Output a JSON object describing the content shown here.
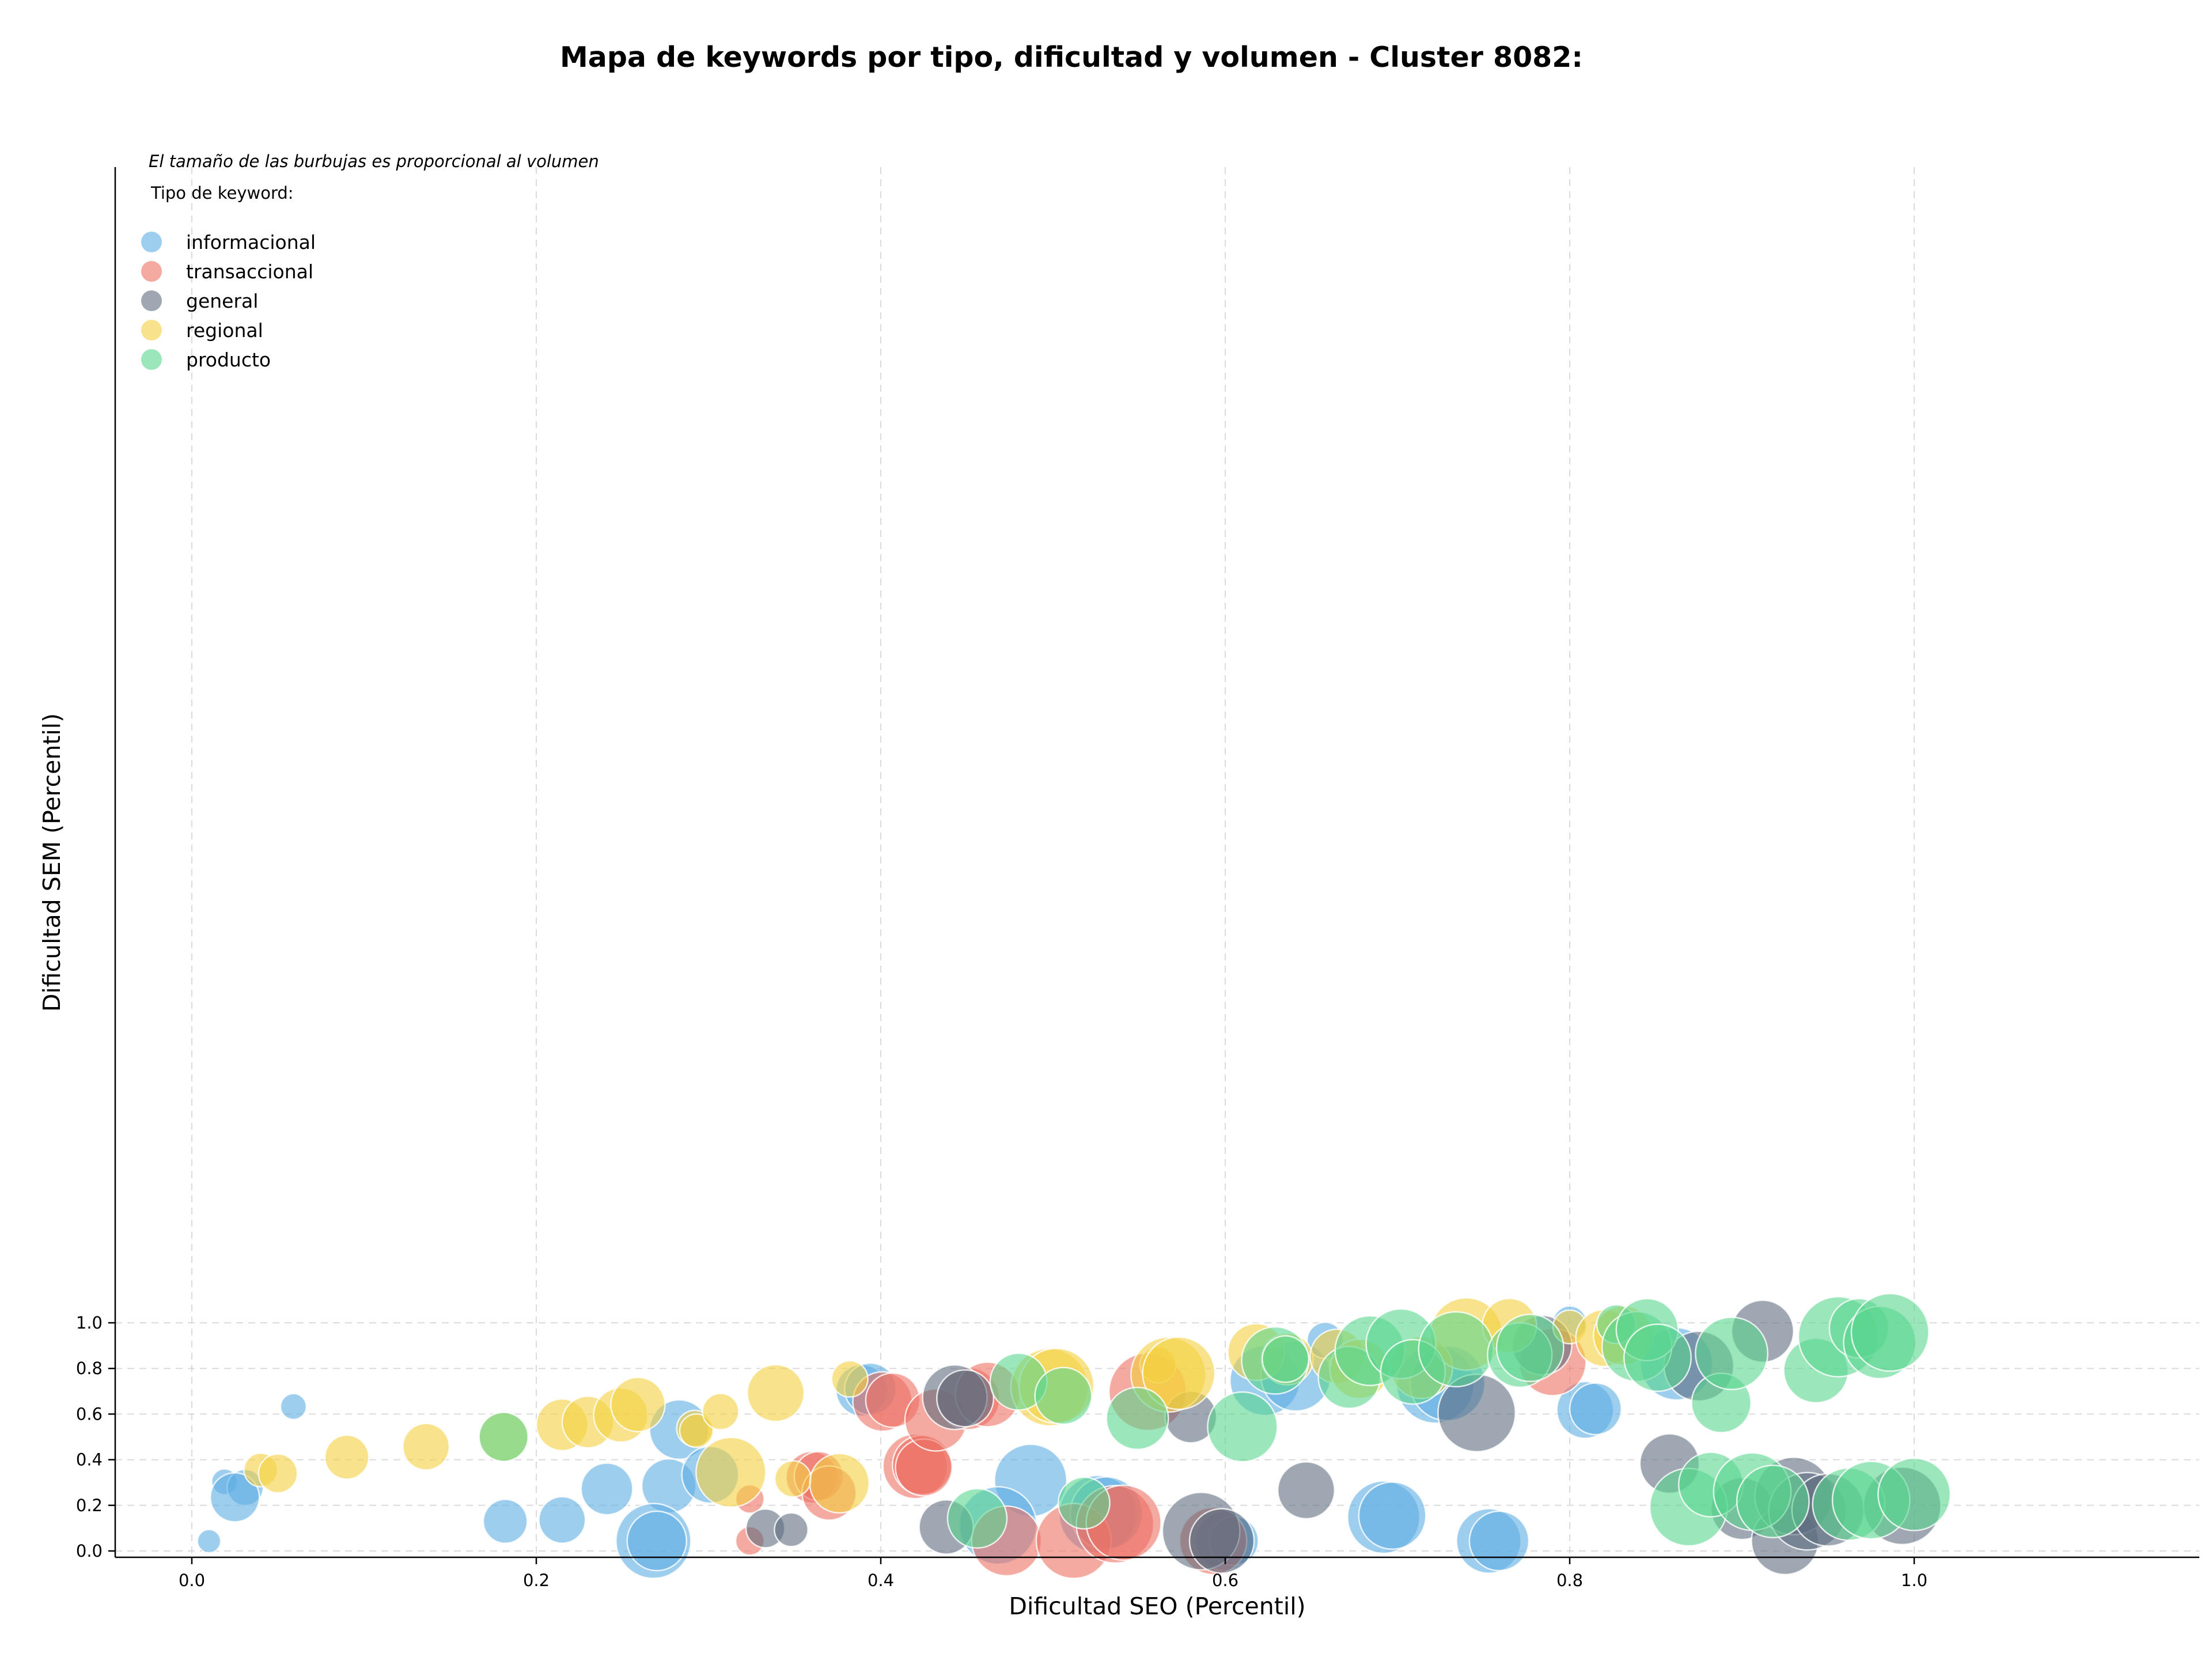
{
  "chart_data": {
    "type": "scatter",
    "title": "Mapa de keywords por tipo, dificultad y volumen - Cluster 8082:",
    "xlabel": "Dificultad SEO (Percentil)",
    "ylabel": "Dificultad SEM (Percentil)",
    "note": "El tamaño de las burbujas es proporcional al volumen",
    "legend_title": "Tipo de keyword:",
    "legend_position": "top-left",
    "grid": true,
    "xlim": [
      -0.04,
      1.05
    ],
    "ylim": [
      -0.005,
      1.05
    ],
    "xticks": [
      "0.0",
      "0.2",
      "0.4",
      "0.6",
      "0.8",
      "1.0"
    ],
    "yticks": [
      "0.0",
      "0.2",
      "0.4",
      "0.6",
      "0.8",
      "1.0"
    ],
    "series": [
      {
        "name": "informacional",
        "color": "#5dade2",
        "points": [
          {
            "x": 0.01,
            "y": 0.043,
            "size": 18
          },
          {
            "x": 0.059,
            "y": 0.633,
            "size": 20
          },
          {
            "x": 0.019,
            "y": 0.303,
            "size": 20
          },
          {
            "x": 0.031,
            "y": 0.278,
            "size": 28
          },
          {
            "x": 0.025,
            "y": 0.235,
            "size": 38
          },
          {
            "x": 0.182,
            "y": 0.13,
            "size": 34
          },
          {
            "x": 0.215,
            "y": 0.136,
            "size": 36
          },
          {
            "x": 0.241,
            "y": 0.272,
            "size": 40
          },
          {
            "x": 0.277,
            "y": 0.285,
            "size": 42
          },
          {
            "x": 0.283,
            "y": 0.532,
            "size": 46
          },
          {
            "x": 0.301,
            "y": 0.334,
            "size": 44
          },
          {
            "x": 0.268,
            "y": 0.044,
            "size": 58
          },
          {
            "x": 0.27,
            "y": 0.044,
            "size": 46
          },
          {
            "x": 0.389,
            "y": 0.704,
            "size": 40
          },
          {
            "x": 0.394,
            "y": 0.71,
            "size": 40
          },
          {
            "x": 0.487,
            "y": 0.309,
            "size": 56
          },
          {
            "x": 0.468,
            "y": 0.112,
            "size": 60
          },
          {
            "x": 0.526,
            "y": 0.161,
            "size": 60
          },
          {
            "x": 0.531,
            "y": 0.166,
            "size": 56
          },
          {
            "x": 0.6,
            "y": 0.044,
            "size": 46
          },
          {
            "x": 0.605,
            "y": 0.044,
            "size": 38
          },
          {
            "x": 0.623,
            "y": 0.747,
            "size": 54
          },
          {
            "x": 0.641,
            "y": 0.766,
            "size": 54
          },
          {
            "x": 0.658,
            "y": 0.923,
            "size": 28
          },
          {
            "x": 0.692,
            "y": 0.148,
            "size": 56
          },
          {
            "x": 0.697,
            "y": 0.155,
            "size": 52
          },
          {
            "x": 0.722,
            "y": 0.73,
            "size": 60
          },
          {
            "x": 0.729,
            "y": 0.735,
            "size": 58
          },
          {
            "x": 0.753,
            "y": 0.044,
            "size": 50
          },
          {
            "x": 0.759,
            "y": 0.044,
            "size": 46
          },
          {
            "x": 0.8,
            "y": 1.0,
            "size": 26
          },
          {
            "x": 0.809,
            "y": 0.618,
            "size": 44
          },
          {
            "x": 0.815,
            "y": 0.623,
            "size": 40
          },
          {
            "x": 0.862,
            "y": 0.82,
            "size": 56
          }
        ]
      },
      {
        "name": "transaccional",
        "color": "#ec7063",
        "points": [
          {
            "x": 0.324,
            "y": 0.228,
            "size": 22
          },
          {
            "x": 0.324,
            "y": 0.044,
            "size": 22
          },
          {
            "x": 0.36,
            "y": 0.323,
            "size": 40
          },
          {
            "x": 0.364,
            "y": 0.328,
            "size": 38
          },
          {
            "x": 0.37,
            "y": 0.254,
            "size": 42
          },
          {
            "x": 0.401,
            "y": 0.655,
            "size": 46
          },
          {
            "x": 0.407,
            "y": 0.661,
            "size": 42
          },
          {
            "x": 0.42,
            "y": 0.371,
            "size": 50
          },
          {
            "x": 0.424,
            "y": 0.377,
            "size": 46
          },
          {
            "x": 0.425,
            "y": 0.366,
            "size": 44
          },
          {
            "x": 0.432,
            "y": 0.574,
            "size": 48
          },
          {
            "x": 0.451,
            "y": 0.668,
            "size": 48
          },
          {
            "x": 0.462,
            "y": 0.686,
            "size": 50
          },
          {
            "x": 0.473,
            "y": 0.044,
            "size": 54
          },
          {
            "x": 0.512,
            "y": 0.044,
            "size": 58
          },
          {
            "x": 0.536,
            "y": 0.117,
            "size": 60
          },
          {
            "x": 0.541,
            "y": 0.124,
            "size": 58
          },
          {
            "x": 0.555,
            "y": 0.698,
            "size": 60
          },
          {
            "x": 0.593,
            "y": 0.044,
            "size": 52
          },
          {
            "x": 0.79,
            "y": 0.828,
            "size": 52
          }
        ]
      },
      {
        "name": "general",
        "color": "#5d6d7e",
        "points": [
          {
            "x": 0.333,
            "y": 0.099,
            "size": 30
          },
          {
            "x": 0.348,
            "y": 0.093,
            "size": 26
          },
          {
            "x": 0.438,
            "y": 0.105,
            "size": 42
          },
          {
            "x": 0.443,
            "y": 0.674,
            "size": 50
          },
          {
            "x": 0.449,
            "y": 0.669,
            "size": 44
          },
          {
            "x": 0.58,
            "y": 0.587,
            "size": 40
          },
          {
            "x": 0.586,
            "y": 0.087,
            "size": 60
          },
          {
            "x": 0.598,
            "y": 0.044,
            "size": 50
          },
          {
            "x": 0.647,
            "y": 0.266,
            "size": 44
          },
          {
            "x": 0.746,
            "y": 0.605,
            "size": 60
          },
          {
            "x": 0.784,
            "y": 0.902,
            "size": 46
          },
          {
            "x": 0.858,
            "y": 0.383,
            "size": 46
          },
          {
            "x": 0.875,
            "y": 0.81,
            "size": 54
          },
          {
            "x": 0.9,
            "y": 0.186,
            "size": 48
          },
          {
            "x": 0.912,
            "y": 0.963,
            "size": 48
          },
          {
            "x": 0.925,
            "y": 0.044,
            "size": 52
          },
          {
            "x": 0.93,
            "y": 0.241,
            "size": 60
          },
          {
            "x": 0.938,
            "y": 0.174,
            "size": 60
          },
          {
            "x": 0.95,
            "y": 0.18,
            "size": 56
          },
          {
            "x": 0.993,
            "y": 0.198,
            "size": 60
          }
        ]
      },
      {
        "name": "regional",
        "color": "#f4d03f",
        "points": [
          {
            "x": 0.04,
            "y": 0.355,
            "size": 26
          },
          {
            "x": 0.05,
            "y": 0.34,
            "size": 30
          },
          {
            "x": 0.09,
            "y": 0.411,
            "size": 34
          },
          {
            "x": 0.136,
            "y": 0.457,
            "size": 36
          },
          {
            "x": 0.181,
            "y": 0.5,
            "size": 38
          },
          {
            "x": 0.215,
            "y": 0.553,
            "size": 40
          },
          {
            "x": 0.23,
            "y": 0.565,
            "size": 40
          },
          {
            "x": 0.249,
            "y": 0.596,
            "size": 42
          },
          {
            "x": 0.259,
            "y": 0.642,
            "size": 42
          },
          {
            "x": 0.292,
            "y": 0.537,
            "size": 28
          },
          {
            "x": 0.293,
            "y": 0.527,
            "size": 26
          },
          {
            "x": 0.307,
            "y": 0.611,
            "size": 28
          },
          {
            "x": 0.313,
            "y": 0.345,
            "size": 54
          },
          {
            "x": 0.339,
            "y": 0.692,
            "size": 44
          },
          {
            "x": 0.349,
            "y": 0.316,
            "size": 28
          },
          {
            "x": 0.376,
            "y": 0.297,
            "size": 46
          },
          {
            "x": 0.382,
            "y": 0.754,
            "size": 28
          },
          {
            "x": 0.498,
            "y": 0.718,
            "size": 60
          },
          {
            "x": 0.502,
            "y": 0.724,
            "size": 58
          },
          {
            "x": 0.561,
            "y": 0.816,
            "size": 28
          },
          {
            "x": 0.567,
            "y": 0.773,
            "size": 58
          },
          {
            "x": 0.573,
            "y": 0.779,
            "size": 56
          },
          {
            "x": 0.618,
            "y": 0.872,
            "size": 44
          },
          {
            "x": 0.636,
            "y": 0.841,
            "size": 40
          },
          {
            "x": 0.665,
            "y": 0.853,
            "size": 42
          },
          {
            "x": 0.678,
            "y": 0.798,
            "size": 46
          },
          {
            "x": 0.714,
            "y": 0.804,
            "size": 48
          },
          {
            "x": 0.74,
            "y": 0.951,
            "size": 56
          },
          {
            "x": 0.765,
            "y": 0.988,
            "size": 42
          },
          {
            "x": 0.8,
            "y": 0.982,
            "size": 26
          },
          {
            "x": 0.82,
            "y": 0.933,
            "size": 44
          },
          {
            "x": 0.831,
            "y": 0.945,
            "size": 46
          }
        ]
      },
      {
        "name": "producto",
        "color": "#58d68d",
        "points": [
          {
            "x": 0.181,
            "y": 0.5,
            "size": 38
          },
          {
            "x": 0.456,
            "y": 0.143,
            "size": 46
          },
          {
            "x": 0.48,
            "y": 0.742,
            "size": 44
          },
          {
            "x": 0.506,
            "y": 0.68,
            "size": 44
          },
          {
            "x": 0.518,
            "y": 0.21,
            "size": 40
          },
          {
            "x": 0.549,
            "y": 0.581,
            "size": 48
          },
          {
            "x": 0.61,
            "y": 0.544,
            "size": 54
          },
          {
            "x": 0.629,
            "y": 0.835,
            "size": 52
          },
          {
            "x": 0.635,
            "y": 0.841,
            "size": 36
          },
          {
            "x": 0.672,
            "y": 0.761,
            "size": 48
          },
          {
            "x": 0.684,
            "y": 0.878,
            "size": 54
          },
          {
            "x": 0.702,
            "y": 0.908,
            "size": 54
          },
          {
            "x": 0.709,
            "y": 0.785,
            "size": 50
          },
          {
            "x": 0.734,
            "y": 0.884,
            "size": 58
          },
          {
            "x": 0.771,
            "y": 0.859,
            "size": 50
          },
          {
            "x": 0.777,
            "y": 0.89,
            "size": 52
          },
          {
            "x": 0.827,
            "y": 0.994,
            "size": 30
          },
          {
            "x": 0.839,
            "y": 0.896,
            "size": 54
          },
          {
            "x": 0.845,
            "y": 0.97,
            "size": 48
          },
          {
            "x": 0.851,
            "y": 0.847,
            "size": 52
          },
          {
            "x": 0.869,
            "y": 0.192,
            "size": 60
          },
          {
            "x": 0.882,
            "y": 0.291,
            "size": 50
          },
          {
            "x": 0.888,
            "y": 0.649,
            "size": 46
          },
          {
            "x": 0.894,
            "y": 0.866,
            "size": 56
          },
          {
            "x": 0.906,
            "y": 0.26,
            "size": 60
          },
          {
            "x": 0.918,
            "y": 0.217,
            "size": 56
          },
          {
            "x": 0.943,
            "y": 0.791,
            "size": 50
          },
          {
            "x": 0.956,
            "y": 0.939,
            "size": 62
          },
          {
            "x": 0.962,
            "y": 0.205,
            "size": 56
          },
          {
            "x": 0.968,
            "y": 0.976,
            "size": 46
          },
          {
            "x": 0.975,
            "y": 0.223,
            "size": 60
          },
          {
            "x": 0.98,
            "y": 0.914,
            "size": 56
          },
          {
            "x": 0.986,
            "y": 0.958,
            "size": 60
          },
          {
            "x": 1.0,
            "y": 0.248,
            "size": 56
          }
        ]
      }
    ]
  }
}
